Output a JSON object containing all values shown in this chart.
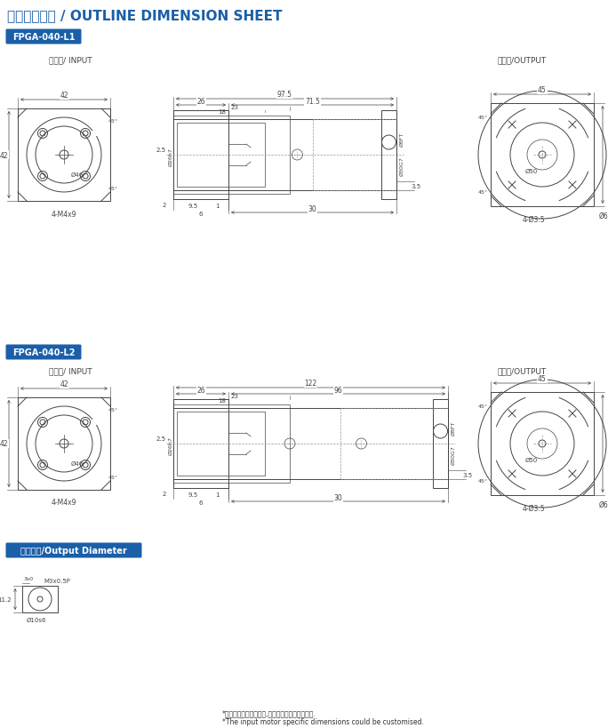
{
  "title": "外形尺寸圖表 / OUTLINE DIMENSION SHEET",
  "title_color": "#1a5fa8",
  "background_color": "#ffffff",
  "label_bg_color": "#1a5fa8",
  "label_text_color": "#ffffff",
  "drawing_color": "#444444",
  "dim_color": "#444444",
  "label1": "FPGA-040-L1",
  "label2": "FPGA-040-L2",
  "label3": "輸出軸徑/Output Diameter",
  "input_label": "輸入端/ INPUT",
  "output_label": "輸出端/OUTPUT",
  "footer1": "*輸入馬達連接板之尺寸,可根據客戶要求單獨定做.",
  "footer2": "*The input motor specific dimensions could be customised."
}
